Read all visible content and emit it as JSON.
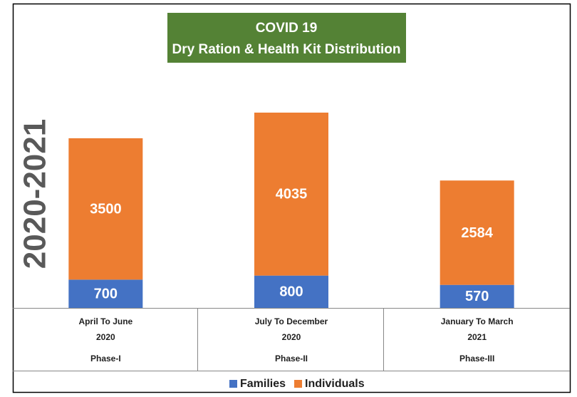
{
  "chart_data": {
    "type": "stacked-bar",
    "title": [
      "COVID 19",
      "Dry Ration & Health Kit Distribution"
    ],
    "y_label": "2020-2021",
    "categories": [
      [
        "April To June",
        "2020",
        "Phase-I"
      ],
      [
        "July To December",
        "2020",
        "Phase-II"
      ],
      [
        "January To March",
        "2021",
        "Phase-III"
      ]
    ],
    "series": [
      {
        "name": "Families",
        "color": "#4472c4",
        "values": [
          700,
          800,
          570
        ]
      },
      {
        "name": "Individuals",
        "color": "#ed7d31",
        "values": [
          3500,
          4035,
          2584
        ]
      }
    ],
    "legend": "bottom"
  }
}
